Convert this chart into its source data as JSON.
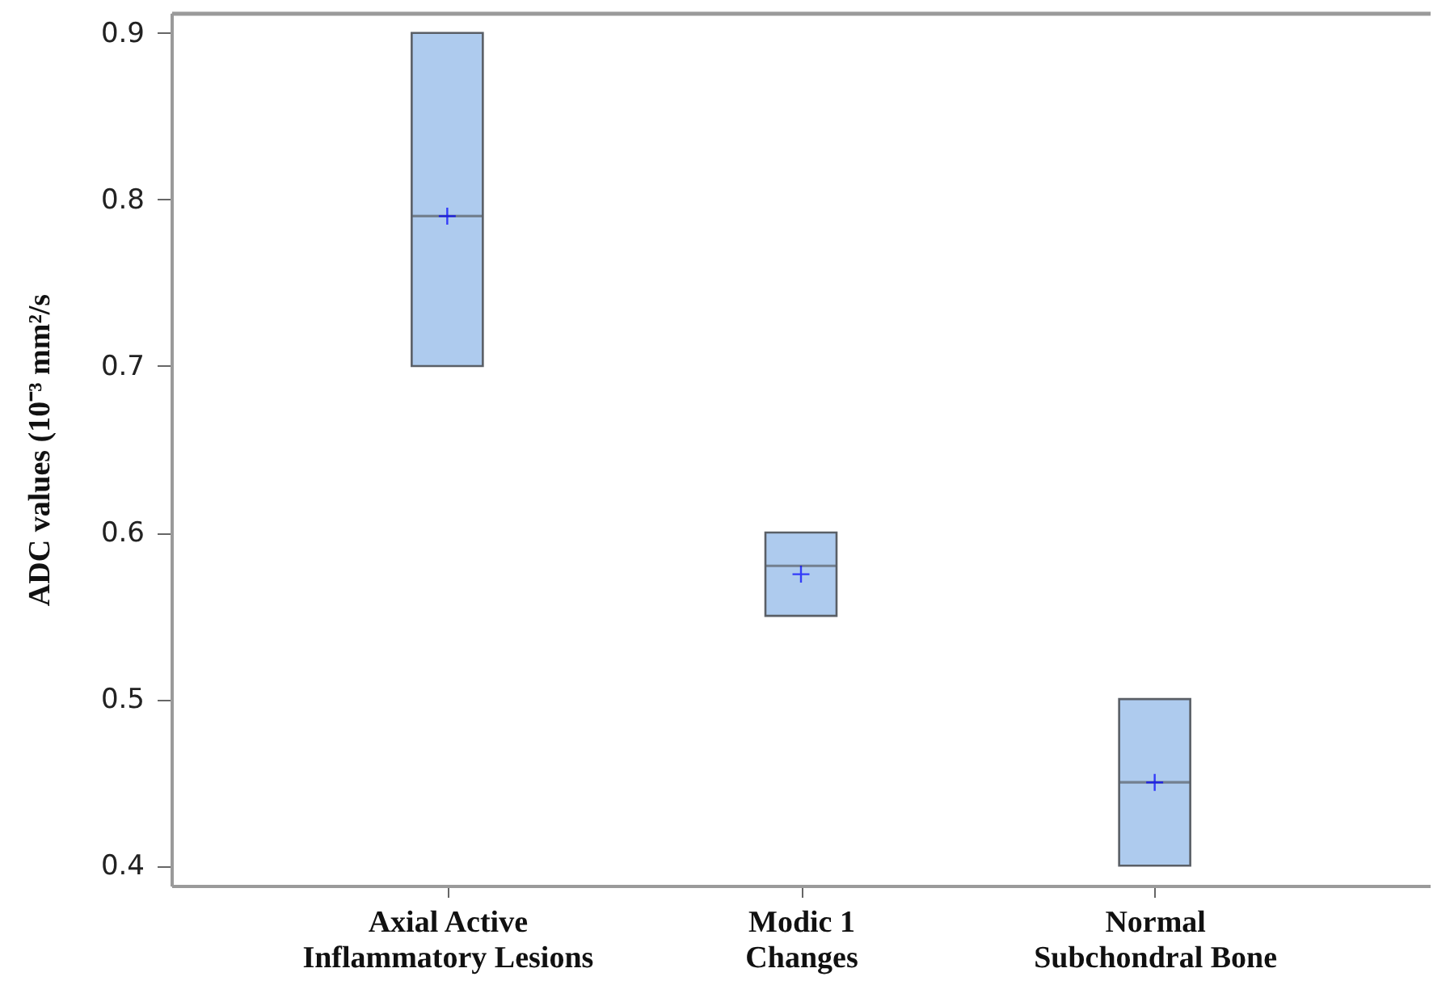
{
  "chart_data": {
    "type": "box",
    "ylabel": "ADC values (10⁻³ mm²/s",
    "categories": [
      "Axial Active\nInflammatory Lesions",
      "Modic 1\nChanges",
      "Normal\nSubchondral Bone"
    ],
    "boxes": [
      {
        "low": 0.7,
        "q1": 0.7,
        "median": 0.79,
        "q3": 0.9,
        "high": 0.9,
        "mean": 0.79
      },
      {
        "low": 0.55,
        "q1": 0.55,
        "median": 0.58,
        "q3": 0.6,
        "high": 0.6,
        "mean": 0.575
      },
      {
        "low": 0.4,
        "q1": 0.4,
        "median": 0.45,
        "q3": 0.5,
        "high": 0.5,
        "mean": 0.45
      }
    ],
    "color": "#aecbee",
    "ylim": [
      0.388,
      0.912
    ],
    "yticks": [
      0.4,
      0.5,
      0.6,
      0.7,
      0.8,
      0.9
    ],
    "grid": false
  }
}
